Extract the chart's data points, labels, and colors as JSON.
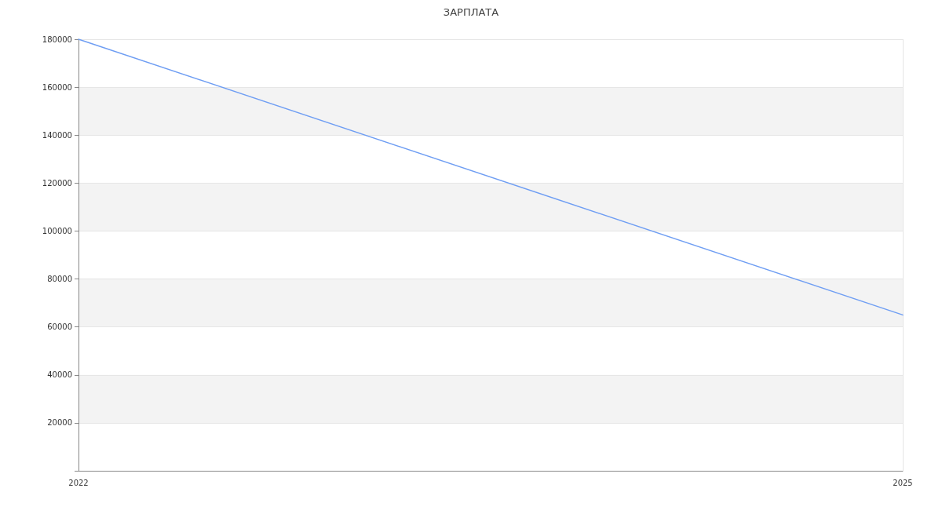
{
  "chart_data": {
    "type": "line",
    "title": "ЗАРПЛАТА",
    "x": [
      2022,
      2025
    ],
    "values": [
      180000,
      65000
    ],
    "color": "#6f9ef3",
    "xlim": [
      2022,
      2025
    ],
    "xticks": [
      2022,
      2025
    ],
    "ylim": [
      0,
      180000
    ],
    "yticks": [
      {
        "value": 0,
        "label": null
      },
      20000,
      40000,
      60000,
      80000,
      100000,
      120000,
      140000,
      160000,
      180000
    ],
    "grid": true,
    "marker": "none",
    "line_style": "solid"
  }
}
